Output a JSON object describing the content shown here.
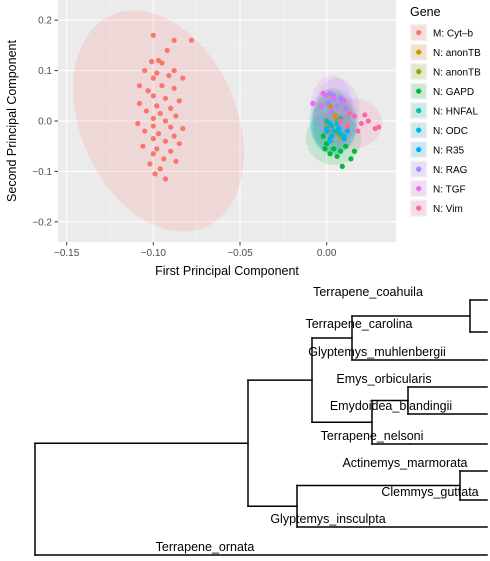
{
  "chart_data": [
    {
      "type": "scatter",
      "title": "",
      "xlabel": "First Principal Component",
      "ylabel": "Second Principal Component",
      "xlim": [
        -0.155,
        0.04
      ],
      "ylim": [
        -0.24,
        0.24
      ],
      "x_ticks": [
        -0.15,
        -0.1,
        -0.05,
        0.0
      ],
      "x_tick_labels": [
        "−0.15",
        "−0.10",
        "−0.05",
        "0.00"
      ],
      "y_ticks": [
        0.2,
        0.1,
        0.0,
        -0.1,
        -0.2
      ],
      "y_tick_labels": [
        "0.2",
        "0.1",
        "0.0",
        "−0.1",
        "−0.2"
      ],
      "grid": true,
      "legend_title": "Gene",
      "legend_position": "right",
      "series": [
        {
          "name": "M: Cyt–b",
          "color": "#F8766D",
          "center": [
            -0.097,
            0.0
          ],
          "ellipse": {
            "rx": 0.045,
            "ry": 0.23,
            "angle_deg": -24
          },
          "points": [
            [
              -0.1,
              0.17
            ],
            [
              -0.088,
              0.16
            ],
            [
              -0.092,
              0.14
            ],
            [
              -0.078,
              0.16
            ],
            [
              -0.097,
              0.12
            ],
            [
              -0.101,
              0.118
            ],
            [
              -0.095,
              0.115
            ],
            [
              -0.088,
              0.1
            ],
            [
              -0.105,
              0.1
            ],
            [
              -0.098,
              0.095
            ],
            [
              -0.091,
              0.09
            ],
            [
              -0.1,
              0.085
            ],
            [
              -0.083,
              0.085
            ],
            [
              -0.108,
              0.07
            ],
            [
              -0.095,
              0.07
            ],
            [
              -0.088,
              0.065
            ],
            [
              -0.103,
              0.06
            ],
            [
              -0.1,
              0.05
            ],
            [
              -0.093,
              0.045
            ],
            [
              -0.085,
              0.04
            ],
            [
              -0.108,
              0.035
            ],
            [
              -0.098,
              0.03
            ],
            [
              -0.09,
              0.025
            ],
            [
              -0.104,
              0.02
            ],
            [
              -0.096,
              0.015
            ],
            [
              -0.087,
              0.01
            ],
            [
              -0.1,
              0.005
            ],
            [
              -0.093,
              0.0
            ],
            [
              -0.109,
              -0.005
            ],
            [
              -0.1,
              -0.01
            ],
            [
              -0.09,
              -0.012
            ],
            [
              -0.083,
              -0.015
            ],
            [
              -0.105,
              -0.02
            ],
            [
              -0.097,
              -0.025
            ],
            [
              -0.088,
              -0.03
            ],
            [
              -0.1,
              -0.035
            ],
            [
              -0.093,
              -0.04
            ],
            [
              -0.085,
              -0.045
            ],
            [
              -0.106,
              -0.05
            ],
            [
              -0.098,
              -0.055
            ],
            [
              -0.09,
              -0.06
            ],
            [
              -0.1,
              -0.065
            ],
            [
              -0.094,
              -0.075
            ],
            [
              -0.087,
              -0.08
            ],
            [
              -0.102,
              -0.085
            ],
            [
              -0.096,
              -0.095
            ],
            [
              -0.099,
              -0.105
            ],
            [
              -0.093,
              -0.115
            ]
          ]
        },
        {
          "name": "N: anonTB",
          "color": "#D39200",
          "center": [
            0.003,
            0.0
          ],
          "ellipse": {
            "rx": 0.011,
            "ry": 0.065,
            "angle_deg": 0
          },
          "points": [
            [
              0.002,
              0.03
            ],
            [
              0.005,
              0.01
            ],
            [
              0.0,
              -0.01
            ],
            [
              0.006,
              -0.025
            ]
          ]
        },
        {
          "name": "N: anonTB",
          "color": "#93AA00",
          "center": [
            0.004,
            0.0
          ],
          "ellipse": {
            "rx": 0.012,
            "ry": 0.06,
            "angle_deg": 0
          },
          "points": [
            [
              0.003,
              0.02
            ],
            [
              0.006,
              0.0
            ],
            [
              0.001,
              -0.02
            ],
            [
              0.008,
              -0.03
            ]
          ]
        },
        {
          "name": "N: GAPD",
          "color": "#00BA38",
          "center": [
            0.004,
            -0.035
          ],
          "ellipse": {
            "rx": 0.016,
            "ry": 0.052,
            "angle_deg": 10
          },
          "points": [
            [
              -0.002,
              -0.03
            ],
            [
              0.0,
              -0.045
            ],
            [
              0.004,
              -0.055
            ],
            [
              0.008,
              -0.06
            ],
            [
              0.002,
              -0.065
            ],
            [
              0.011,
              -0.05
            ],
            [
              0.006,
              -0.07
            ],
            [
              0.014,
              -0.075
            ],
            [
              0.016,
              -0.06
            ],
            [
              0.009,
              -0.09
            ],
            [
              -0.001,
              -0.055
            ]
          ]
        },
        {
          "name": "N: HNFAL",
          "color": "#00C19F",
          "center": [
            0.004,
            -0.005
          ],
          "ellipse": {
            "rx": 0.013,
            "ry": 0.06,
            "angle_deg": 0
          },
          "points": [
            [
              0.0,
              0.0
            ],
            [
              0.003,
              -0.01
            ],
            [
              0.006,
              -0.02
            ],
            [
              0.002,
              -0.035
            ],
            [
              0.008,
              0.005
            ]
          ]
        },
        {
          "name": "N: ODC",
          "color": "#00B9E3",
          "center": [
            0.004,
            -0.01
          ],
          "ellipse": {
            "rx": 0.013,
            "ry": 0.058,
            "angle_deg": 0
          },
          "points": [
            [
              0.0,
              -0.015
            ],
            [
              0.004,
              -0.02
            ],
            [
              0.008,
              -0.025
            ],
            [
              0.002,
              -0.04
            ],
            [
              0.006,
              -0.005
            ],
            [
              0.01,
              -0.03
            ]
          ]
        },
        {
          "name": "N: R35",
          "color": "#00ADFA",
          "center": [
            0.004,
            0.0
          ],
          "ellipse": {
            "rx": 0.014,
            "ry": 0.065,
            "angle_deg": 0
          },
          "points": [
            [
              0.0,
              -0.02
            ],
            [
              0.003,
              -0.03
            ],
            [
              0.007,
              -0.015
            ],
            [
              0.01,
              -0.035
            ],
            [
              0.002,
              -0.005
            ],
            [
              0.012,
              -0.02
            ]
          ]
        },
        {
          "name": "N: RAG",
          "color": "#AB82FF",
          "center": [
            0.006,
            0.02
          ],
          "ellipse": {
            "rx": 0.013,
            "ry": 0.065,
            "angle_deg": 0
          },
          "points": [
            [
              0.002,
              0.055
            ],
            [
              0.004,
              0.05
            ],
            [
              0.008,
              0.045
            ],
            [
              0.001,
              0.035
            ],
            [
              0.006,
              0.03
            ],
            [
              0.009,
              0.04
            ],
            [
              0.003,
              0.02
            ],
            [
              0.011,
              0.025
            ]
          ]
        },
        {
          "name": "N: TGF",
          "color": "#E76BF3",
          "center": [
            0.003,
            0.03
          ],
          "ellipse": {
            "rx": 0.012,
            "ry": 0.06,
            "angle_deg": 0
          },
          "points": [
            [
              -0.008,
              0.035
            ],
            [
              -0.002,
              0.055
            ],
            [
              0.0,
              0.05
            ],
            [
              0.004,
              0.045
            ],
            [
              0.01,
              0.04
            ],
            [
              -0.003,
              0.03
            ]
          ]
        },
        {
          "name": "N: Vim",
          "color": "#FF67A4",
          "center": [
            0.015,
            -0.005
          ],
          "ellipse": {
            "rx": 0.017,
            "ry": 0.05,
            "angle_deg": 0
          },
          "points": [
            [
              0.008,
              0.0
            ],
            [
              0.012,
              -0.01
            ],
            [
              0.016,
              0.01
            ],
            [
              0.02,
              -0.005
            ],
            [
              0.024,
              0.0
            ],
            [
              0.028,
              -0.015
            ],
            [
              0.018,
              -0.02
            ],
            [
              0.013,
              0.015
            ],
            [
              0.03,
              -0.012
            ],
            [
              0.022,
              0.012
            ]
          ]
        }
      ]
    },
    {
      "type": "dendrogram",
      "leaves": [
        "Terrapene_coahuila",
        "Terrapene_carolina",
        "Glyptemys_muhlenbergii",
        "Emys_orbicularis",
        "Emydoidea_blandingii",
        "Terrapene_nelsoni",
        "Actinemys_marmorata",
        "Clemmys_guttata",
        "Glyptemys_insculpta",
        "Terrapene_ornata"
      ]
    }
  ]
}
